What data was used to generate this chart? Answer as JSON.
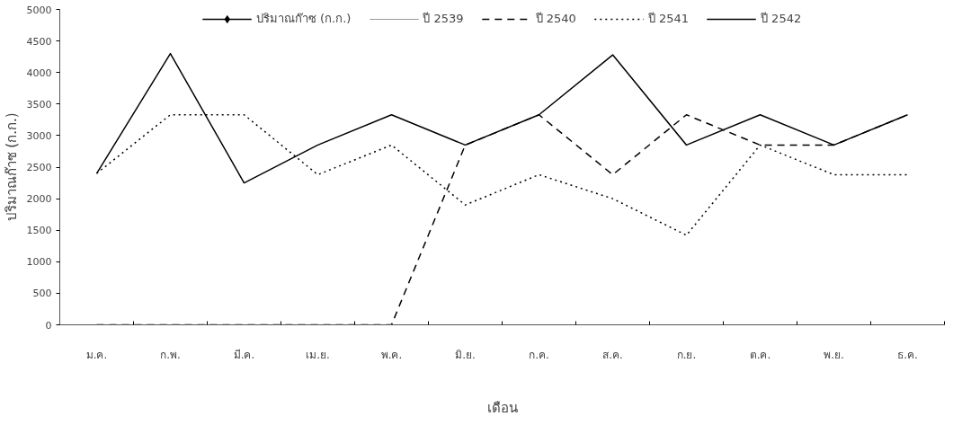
{
  "chart_data": {
    "type": "line",
    "xlabel": "เดือน",
    "ylabel": "ปริมาณก๊าซ (ก.ก.)",
    "categories": [
      "ม.ค.",
      "ก.พ.",
      "มี.ค.",
      "เม.ย.",
      "พ.ค.",
      "มิ.ย.",
      "ก.ค.",
      "ส.ค.",
      "ก.ย.",
      "ต.ค.",
      "พ.ย.",
      "ธ.ค."
    ],
    "series": [
      {
        "name": "ปริมาณก๊าซ (ก.ก.)",
        "color": "#000000",
        "marker": "diamond",
        "line_style": "solid",
        "values": [
          null,
          null,
          null,
          null,
          null,
          null,
          null,
          null,
          null,
          null,
          null,
          null
        ]
      },
      {
        "name": "ปี 2539",
        "color": "#999999",
        "line_style": "solid",
        "values": [
          null,
          null,
          null,
          null,
          null,
          null,
          null,
          null,
          null,
          null,
          null,
          null
        ]
      },
      {
        "name": "ปี 2540",
        "color": "#000000",
        "line_style": "dashed",
        "values": [
          0,
          0,
          0,
          0,
          0,
          2850,
          3330,
          2380,
          3330,
          2850,
          2850,
          3330
        ]
      },
      {
        "name": "ปี 2541",
        "color": "#000000",
        "line_style": "dotted",
        "values": [
          2400,
          3330,
          3330,
          2380,
          2850,
          1900,
          2380,
          2000,
          1420,
          2850,
          2380,
          2380
        ]
      },
      {
        "name": "ปี 2542",
        "color": "#000000",
        "line_style": "solid",
        "values": [
          2400,
          4300,
          2250,
          2850,
          3330,
          2850,
          3330,
          4280,
          2850,
          3330,
          2850,
          3330
        ]
      }
    ],
    "ylim": [
      0,
      5000
    ],
    "yticks": [
      0,
      500,
      1000,
      1500,
      2000,
      2500,
      3000,
      3500,
      4000,
      4500,
      5000
    ],
    "grid": false,
    "legend": "top",
    "marker": "none"
  }
}
